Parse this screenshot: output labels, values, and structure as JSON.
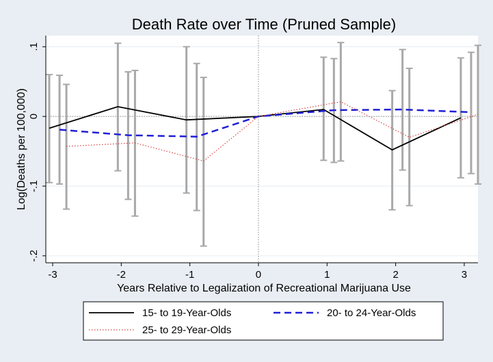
{
  "chart_data": {
    "type": "line",
    "title": "Death Rate over Time (Pruned Sample)",
    "xlabel": "Years Relative to Legalization of Recreational Marijuana Use",
    "ylabel": "Log(Deaths per 100,000)",
    "x": [
      -3,
      -2,
      -1,
      0,
      1,
      2,
      3
    ],
    "x_ticks": [
      "-3",
      "-2",
      "-1",
      "0",
      "1",
      "2",
      "3"
    ],
    "y_ticks": [
      {
        "value": 0.1,
        "label": ".1"
      },
      {
        "value": 0,
        "label": "0"
      },
      {
        "value": -0.1,
        "label": "-.1"
      },
      {
        "value": -0.2,
        "label": "-.2"
      }
    ],
    "xlim": [
      -3.1,
      3.2
    ],
    "ylim": [
      -0.21,
      0.116
    ],
    "grid": true,
    "reference_lines": {
      "x": 0,
      "y": 0
    },
    "legend_position": "bottom",
    "series": [
      {
        "name": "15- to 19-Year-Olds",
        "color": "#000000",
        "dash": "solid",
        "x_offset": -0.05,
        "values": [
          -0.017,
          0.014,
          -0.005,
          0,
          0.01,
          -0.048,
          -0.002
        ],
        "ci_low": [
          -0.095,
          -0.078,
          -0.11,
          null,
          -0.063,
          -0.134,
          -0.088
        ],
        "ci_high": [
          0.06,
          0.105,
          0.1,
          null,
          0.085,
          0.037,
          0.084
        ]
      },
      {
        "name": "20- to 24-Year-Olds",
        "color": "#1f1fd6",
        "dash": "long",
        "x_offset": 0.1,
        "values": [
          -0.019,
          -0.027,
          -0.029,
          0,
          0.009,
          0.01,
          0.006
        ],
        "ci_low": [
          -0.097,
          -0.119,
          -0.135,
          null,
          -0.066,
          -0.077,
          -0.082
        ],
        "ci_high": [
          0.059,
          0.064,
          0.076,
          null,
          0.083,
          0.096,
          0.092
        ]
      },
      {
        "name": "25- to 29-Year-Olds",
        "color": "#d94040",
        "dash": "dotted",
        "x_offset": 0.2,
        "values": [
          -0.043,
          -0.038,
          -0.064,
          0,
          0.021,
          -0.03,
          0.003
        ],
        "ci_low": [
          -0.133,
          -0.143,
          -0.186,
          null,
          -0.064,
          -0.128,
          -0.097
        ],
        "ci_high": [
          0.046,
          0.066,
          0.056,
          null,
          0.106,
          0.069,
          0.102
        ]
      }
    ]
  }
}
